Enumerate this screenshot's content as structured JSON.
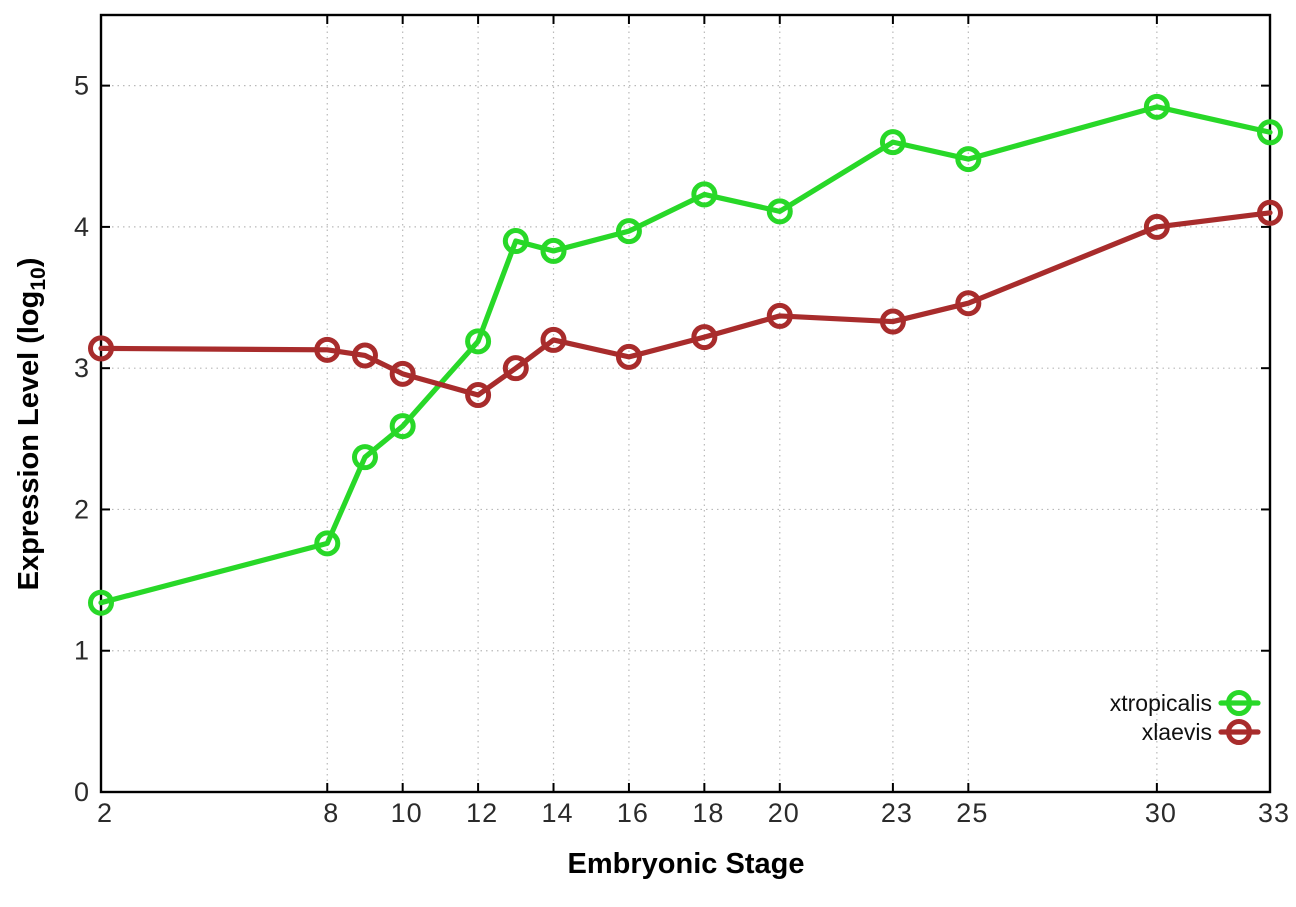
{
  "chart_data": {
    "type": "line",
    "title": "",
    "xlabel": "Embryonic Stage",
    "ylabel_prefix": "Expression Level (log",
    "ylabel_sub": "10",
    "ylabel_suffix": ")",
    "xlim": [
      2,
      33
    ],
    "ylim": [
      0,
      5.5
    ],
    "x_ticks": [
      2,
      8,
      10,
      12,
      14,
      16,
      18,
      20,
      23,
      25,
      30,
      33
    ],
    "y_ticks": [
      0,
      1,
      2,
      3,
      4,
      5
    ],
    "grid": true,
    "legend_position": "bottom-right",
    "x": [
      2,
      8,
      9,
      10,
      12,
      13,
      14,
      16,
      18,
      20,
      23,
      25,
      30,
      33
    ],
    "series": [
      {
        "name": "xtropicalis",
        "color": "#28d828",
        "values": [
          1.34,
          1.76,
          2.37,
          2.59,
          3.19,
          3.9,
          3.83,
          3.97,
          4.23,
          4.11,
          4.6,
          4.48,
          4.85,
          4.67
        ]
      },
      {
        "name": "xlaevis",
        "color": "#a82c2c",
        "values": [
          3.14,
          3.13,
          3.09,
          2.96,
          2.81,
          3.0,
          3.2,
          3.08,
          3.22,
          3.37,
          3.33,
          3.46,
          4.0,
          4.1
        ]
      }
    ]
  }
}
